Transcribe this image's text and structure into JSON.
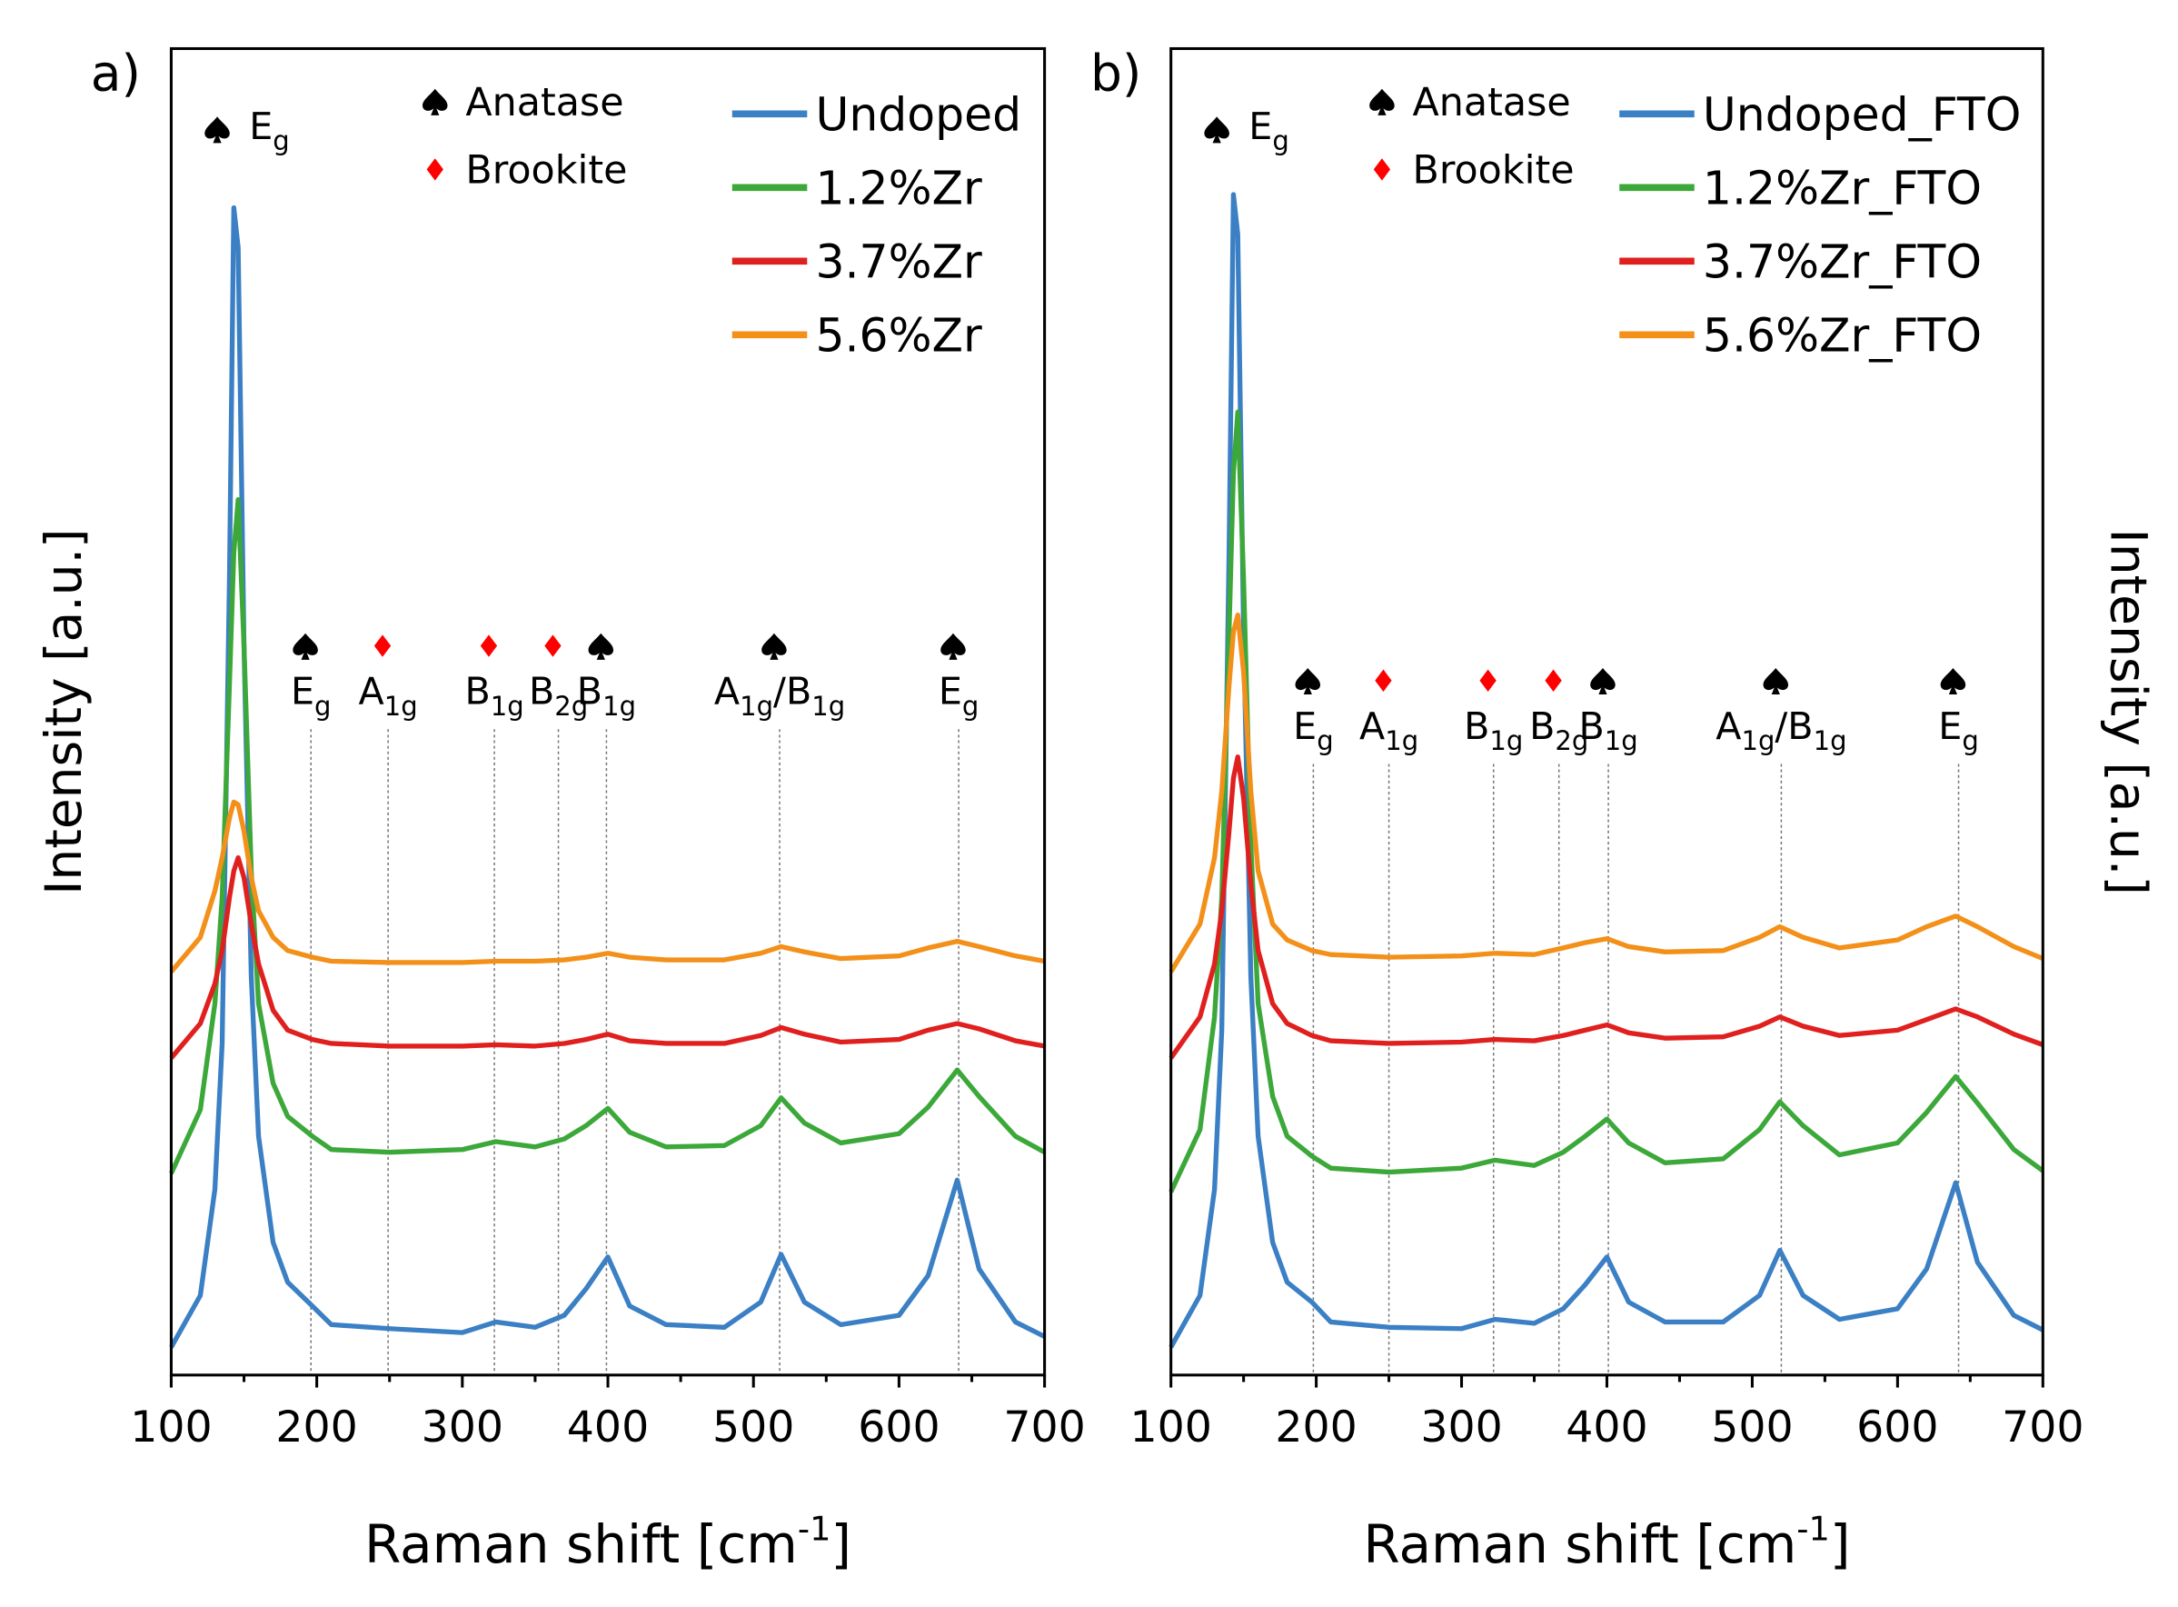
{
  "chart_data": [
    {
      "type": "line",
      "panel_label": "a)",
      "y_label": "Intensity [a.u.]",
      "x_label_parts": [
        "Raman shift [cm",
        "-1",
        "]"
      ],
      "xlim": [
        100,
        700
      ],
      "ylim": [
        0,
        100
      ],
      "xticks": [
        100,
        200,
        300,
        400,
        500,
        600,
        700
      ],
      "xminorticks": [
        150,
        250,
        350,
        450,
        550,
        650
      ],
      "legend": "top-right",
      "y_label_side": "left",
      "phase_legend": [
        {
          "marker": "spade",
          "color": "#000000",
          "label": "Anatase"
        },
        {
          "marker": "diamond",
          "color": "#ff0000",
          "label": "Brookite"
        }
      ],
      "annotations": [
        {
          "x": 144,
          "marker": "spade",
          "guide": false,
          "parts": [
            "E",
            "g"
          ]
        },
        {
          "x": 196,
          "marker": "spade",
          "guide": true,
          "parts": [
            "E",
            "g"
          ]
        },
        {
          "x": 249,
          "marker": "diamond",
          "guide": true,
          "parts": [
            "A",
            "1g"
          ]
        },
        {
          "x": 322,
          "marker": "diamond",
          "guide": true,
          "parts": [
            "B",
            "1g"
          ]
        },
        {
          "x": 366,
          "marker": "diamond",
          "guide": true,
          "parts": [
            "B",
            "2g"
          ]
        },
        {
          "x": 399,
          "marker": "spade",
          "guide": true,
          "parts": [
            "B",
            "1g"
          ]
        },
        {
          "x": 518,
          "marker": "spade",
          "guide": true,
          "parts": [
            "A",
            "1g",
            "/B",
            "1g"
          ]
        },
        {
          "x": 641,
          "marker": "spade",
          "guide": true,
          "parts": [
            "E",
            "g"
          ]
        }
      ],
      "x": [
        100,
        120,
        130,
        135,
        140,
        143,
        146,
        150,
        155,
        160,
        170,
        180,
        197,
        210,
        250,
        300,
        323,
        350,
        370,
        385,
        400,
        415,
        440,
        480,
        505,
        519,
        535,
        560,
        600,
        620,
        640,
        655,
        680,
        700
      ],
      "series": [
        {
          "name": "Undoped",
          "color": "#3b7fc4",
          "values": [
            2.1,
            6,
            14,
            25,
            60,
            88,
            85,
            55,
            30,
            18,
            10,
            7,
            5.2,
            3.8,
            3.5,
            3.2,
            4,
            3.6,
            4.5,
            6.5,
            8.9,
            5.2,
            3.8,
            3.6,
            5.5,
            9.1,
            5.5,
            3.8,
            4.5,
            7.5,
            14.7,
            8,
            4,
            2.9
          ]
        },
        {
          "name": "1.2%Zr",
          "color": "#3ca83a",
          "values": [
            15.2,
            20,
            28,
            36,
            52,
            62,
            66,
            55,
            38,
            28,
            22,
            19.5,
            18,
            17,
            16.8,
            17,
            17.6,
            17.2,
            17.8,
            18.8,
            20.1,
            18.3,
            17.2,
            17.3,
            18.8,
            20.9,
            19,
            17.5,
            18.2,
            20.2,
            23,
            21,
            18,
            16.8
          ]
        },
        {
          "name": "3.7%Zr",
          "color": "#e0201e",
          "values": [
            23.9,
            26.5,
            29.5,
            32,
            36,
            38,
            39,
            37.5,
            34,
            31,
            27.5,
            26,
            25.3,
            25,
            24.8,
            24.8,
            24.9,
            24.8,
            25,
            25.3,
            25.7,
            25.2,
            25,
            25,
            25.6,
            26.2,
            25.7,
            25.1,
            25.3,
            26,
            26.5,
            26.1,
            25.2,
            24.8
          ]
        },
        {
          "name": "5.6%Zr",
          "color": "#f39019",
          "values": [
            30.4,
            33,
            36.5,
            39,
            42,
            43.2,
            43,
            41,
            37.5,
            35,
            33,
            32,
            31.5,
            31.2,
            31.1,
            31.1,
            31.2,
            31.2,
            31.3,
            31.5,
            31.8,
            31.5,
            31.3,
            31.3,
            31.8,
            32.3,
            31.9,
            31.4,
            31.6,
            32.2,
            32.7,
            32.3,
            31.6,
            31.2
          ]
        }
      ]
    },
    {
      "type": "line",
      "panel_label": "b)",
      "y_label": "Intensity [a.u.]",
      "x_label_parts": [
        "Raman shift [cm",
        "-1",
        "]"
      ],
      "xlim": [
        100,
        700
      ],
      "ylim": [
        0,
        100
      ],
      "xticks": [
        100,
        200,
        300,
        400,
        500,
        600,
        700
      ],
      "xminorticks": [
        150,
        250,
        350,
        450,
        550,
        650
      ],
      "legend": "top-right",
      "y_label_side": "right",
      "phase_legend": [
        {
          "marker": "spade",
          "color": "#000000",
          "label": "Anatase"
        },
        {
          "marker": "diamond",
          "color": "#ff0000",
          "label": "Brookite"
        }
      ],
      "annotations": [
        {
          "x": 144,
          "marker": "spade",
          "guide": false,
          "parts": [
            "E",
            "g"
          ]
        },
        {
          "x": 198,
          "marker": "spade",
          "guide": true,
          "parts": [
            "E",
            "g"
          ]
        },
        {
          "x": 250,
          "marker": "diamond",
          "guide": true,
          "parts": [
            "A",
            "1g"
          ]
        },
        {
          "x": 322,
          "marker": "diamond",
          "guide": true,
          "parts": [
            "B",
            "1g"
          ]
        },
        {
          "x": 367,
          "marker": "diamond",
          "guide": true,
          "parts": [
            "B",
            "2g"
          ]
        },
        {
          "x": 401,
          "marker": "spade",
          "guide": true,
          "parts": [
            "B",
            "1g"
          ]
        },
        {
          "x": 520,
          "marker": "spade",
          "guide": true,
          "parts": [
            "A",
            "1g",
            "/B",
            "1g"
          ]
        },
        {
          "x": 642,
          "marker": "spade",
          "guide": true,
          "parts": [
            "E",
            "g"
          ]
        }
      ],
      "x": [
        100,
        120,
        130,
        135,
        140,
        143,
        146,
        150,
        155,
        160,
        170,
        180,
        197,
        210,
        250,
        300,
        323,
        350,
        370,
        385,
        400,
        415,
        440,
        480,
        505,
        519,
        535,
        560,
        600,
        620,
        640,
        655,
        680,
        700
      ],
      "series": [
        {
          "name": "Undoped_FTO",
          "color": "#3b7fc4",
          "values": [
            2.1,
            6,
            14,
            26,
            62,
            89,
            86,
            56,
            30,
            18,
            10,
            7,
            5.5,
            4,
            3.6,
            3.5,
            4.2,
            3.9,
            5,
            6.8,
            8.9,
            5.5,
            4,
            4,
            6,
            9.4,
            6,
            4.2,
            5,
            8,
            14.5,
            8.5,
            4.5,
            3.4
          ]
        },
        {
          "name": "1.2%Zr_FTO",
          "color": "#3ca83a",
          "values": [
            13.8,
            18.5,
            27,
            36,
            56,
            68,
            72.6,
            60,
            40,
            28,
            21,
            18,
            16.5,
            15.6,
            15.3,
            15.6,
            16.2,
            15.8,
            16.8,
            18,
            19.3,
            17.5,
            16,
            16.3,
            18.5,
            20.6,
            18.8,
            16.6,
            17.5,
            19.8,
            22.5,
            20.5,
            17,
            15.4
          ]
        },
        {
          "name": "3.7%Zr_FTO",
          "color": "#e0201e",
          "values": [
            23.9,
            27,
            31,
            35,
            41,
            45,
            46.6,
            43.5,
            37,
            32,
            28,
            26.5,
            25.6,
            25.2,
            25,
            25.1,
            25.3,
            25.2,
            25.6,
            26,
            26.4,
            25.8,
            25.4,
            25.5,
            26.3,
            27,
            26.3,
            25.6,
            26,
            26.8,
            27.6,
            27,
            25.7,
            24.9
          ]
        },
        {
          "name": "5.6%Zr_FTO",
          "color": "#f39019",
          "values": [
            30.4,
            34,
            39,
            44,
            52,
            56,
            57.3,
            53,
            44,
            38,
            34,
            32.8,
            32,
            31.7,
            31.5,
            31.6,
            31.8,
            31.7,
            32.2,
            32.6,
            32.9,
            32.3,
            31.9,
            32,
            33,
            33.8,
            33,
            32.2,
            32.8,
            33.8,
            34.6,
            33.8,
            32.3,
            31.4
          ]
        }
      ]
    }
  ]
}
